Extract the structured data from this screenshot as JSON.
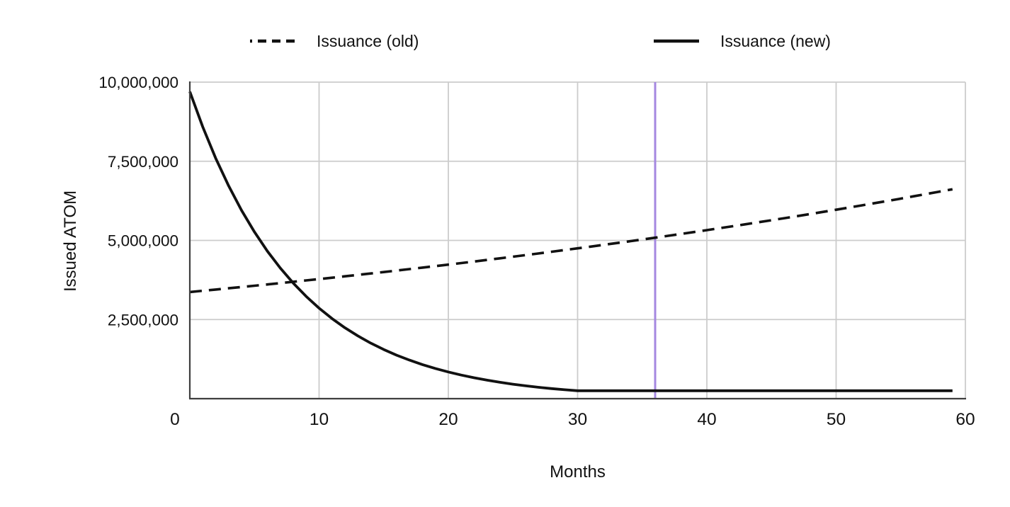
{
  "chart_data": {
    "type": "line",
    "title": "",
    "xlabel": "Months",
    "ylabel": "Issued ATOM",
    "xlim": [
      0,
      60
    ],
    "ylim": [
      0,
      10000000
    ],
    "grid": true,
    "legend_position": "top",
    "grid_color": "#cccccc",
    "spine_color": "#3f3f3f",
    "text_color": "#111111",
    "x_ticks": [
      0,
      10,
      20,
      30,
      40,
      50,
      60
    ],
    "x_tick_labels": [
      "0",
      "10",
      "20",
      "30",
      "40",
      "50",
      "60"
    ],
    "y_ticks": [
      2500000,
      5000000,
      7500000,
      10000000
    ],
    "y_tick_labels": [
      "2,500,000",
      "5,000,000",
      "7,500,000",
      "10,000,000"
    ],
    "annotations": [
      {
        "type": "vline",
        "x": 36,
        "color": "#a588e0"
      }
    ],
    "x": [
      0,
      1,
      2,
      3,
      4,
      5,
      6,
      7,
      8,
      9,
      10,
      11,
      12,
      13,
      14,
      15,
      16,
      17,
      18,
      19,
      20,
      21,
      22,
      23,
      24,
      25,
      26,
      27,
      28,
      29,
      30,
      31,
      32,
      33,
      34,
      35,
      36,
      37,
      38,
      39,
      40,
      41,
      42,
      43,
      44,
      45,
      46,
      47,
      48,
      49,
      50,
      51,
      52,
      53,
      54,
      55,
      56,
      57,
      58,
      59
    ],
    "series": [
      {
        "name": "Issuance (old)",
        "style": "dashed",
        "color": "#111111",
        "values": [
          3370000,
          3409000,
          3448000,
          3488000,
          3528000,
          3568000,
          3609000,
          3651000,
          3693000,
          3735000,
          3778000,
          3822000,
          3866000,
          3910000,
          3955000,
          4001000,
          4047000,
          4093000,
          4140000,
          4188000,
          4236000,
          4285000,
          4334000,
          4384000,
          4434000,
          4485000,
          4537000,
          4589000,
          4642000,
          4695000,
          4749000,
          4804000,
          4859000,
          4915000,
          4971000,
          5028000,
          5086000,
          5145000,
          5204000,
          5264000,
          5324000,
          5386000,
          5447000,
          5510000,
          5574000,
          5638000,
          5702000,
          5768000,
          5834000,
          5901000,
          5969000,
          6038000,
          6107000,
          6178000,
          6249000,
          6320000,
          6393000,
          6467000,
          6541000,
          6616000
        ]
      },
      {
        "name": "Issuance (new)",
        "style": "solid",
        "color": "#111111",
        "values": [
          9700000,
          8585000,
          7597000,
          6724000,
          5950000,
          5266000,
          4660000,
          4125000,
          3650000,
          3230000,
          2859000,
          2530000,
          2239000,
          1982000,
          1754000,
          1552000,
          1374000,
          1216000,
          1076000,
          952000,
          843000,
          746000,
          660000,
          584000,
          517000,
          457000,
          405000,
          358000,
          317000,
          281000,
          250000,
          250000,
          250000,
          250000,
          250000,
          250000,
          250000,
          250000,
          250000,
          250000,
          250000,
          250000,
          250000,
          250000,
          250000,
          250000,
          250000,
          250000,
          250000,
          250000,
          250000,
          250000,
          250000,
          250000,
          250000,
          250000,
          250000,
          250000,
          250000,
          250000
        ]
      }
    ]
  }
}
